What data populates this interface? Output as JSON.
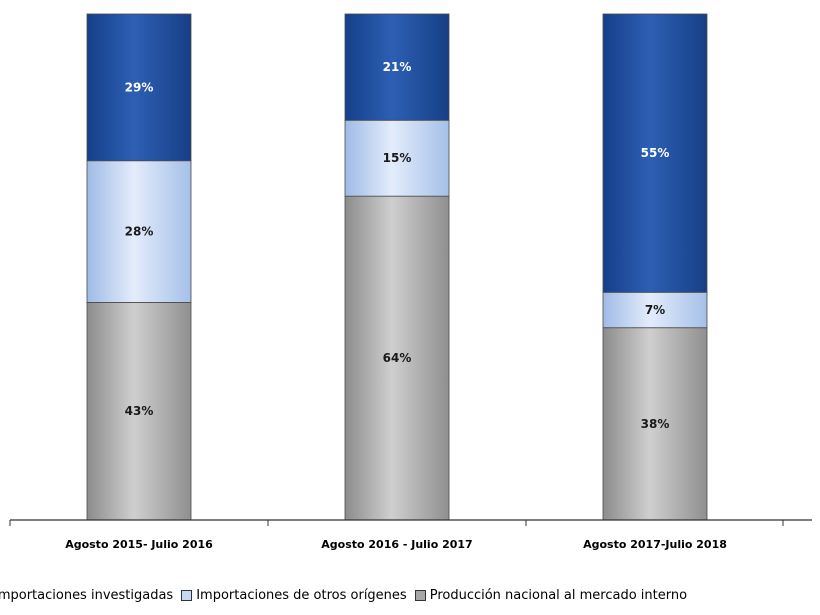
{
  "chart_data": {
    "type": "bar",
    "stacked": true,
    "percent": true,
    "categories": [
      "Agosto 2015- Julio 2016",
      "Agosto 2016 - Julio 2017",
      "Agosto 2017-Julio 2018"
    ],
    "series": [
      {
        "name": "Producción nacional al mercado interno",
        "values": [
          43,
          64,
          38
        ],
        "labels": [
          "43%",
          "64%",
          "38%"
        ],
        "color": "#a6a6a6"
      },
      {
        "name": "Importaciones de otros orígenes",
        "values": [
          28,
          15,
          7
        ],
        "labels": [
          "28%",
          "15%",
          "7%"
        ],
        "color": "#c6d9f1"
      },
      {
        "name": "Importaciones investigadas",
        "values": [
          29,
          21,
          55
        ],
        "labels": [
          "29%",
          "21%",
          "55%"
        ],
        "color": "#1f4e9b"
      }
    ],
    "legend_order": [
      {
        "name": "Importaciones investigadas",
        "color": "#1f4e9b"
      },
      {
        "name": "Importaciones de otros orígenes",
        "color": "#c6d9f1"
      },
      {
        "name": "Producción nacional al mercado interno",
        "color": "#a6a6a6"
      }
    ],
    "ylim": [
      0,
      100
    ],
    "legend_position": "bottom",
    "grid": false
  }
}
